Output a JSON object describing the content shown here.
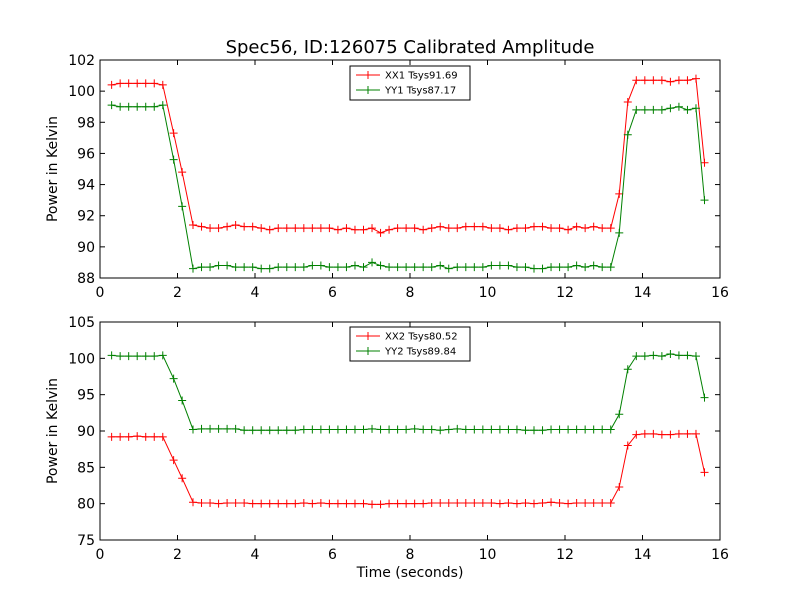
{
  "figure_title": "Spec56, ID:126075 Calibrated Amplitude",
  "xlabel": "Time (seconds)",
  "colors": {
    "red": "#ff0000",
    "green": "#008000"
  },
  "chart_data": [
    {
      "type": "line",
      "ylabel": "Power in Kelvin",
      "xlim": [
        0,
        16
      ],
      "ylim": [
        88,
        102
      ],
      "xticks": [
        0,
        2,
        4,
        6,
        8,
        10,
        12,
        14,
        16
      ],
      "yticks": [
        88,
        90,
        92,
        94,
        96,
        98,
        100,
        102
      ],
      "legend_position": "top-center",
      "grid": false,
      "x": [
        0.3,
        0.52,
        0.74,
        0.96,
        1.18,
        1.4,
        1.62,
        1.9,
        2.12,
        2.4,
        2.62,
        2.84,
        3.06,
        3.28,
        3.5,
        3.72,
        3.94,
        4.16,
        4.38,
        4.6,
        4.82,
        5.04,
        5.26,
        5.48,
        5.7,
        5.92,
        6.14,
        6.36,
        6.58,
        6.8,
        7.02,
        7.24,
        7.46,
        7.68,
        7.9,
        8.12,
        8.34,
        8.56,
        8.78,
        9.0,
        9.22,
        9.44,
        9.66,
        9.88,
        10.1,
        10.32,
        10.54,
        10.76,
        10.98,
        11.2,
        11.42,
        11.64,
        11.86,
        12.08,
        12.3,
        12.52,
        12.74,
        12.96,
        13.18,
        13.4,
        13.62,
        13.84,
        14.06,
        14.28,
        14.5,
        14.72,
        14.94,
        15.16,
        15.38,
        15.6
      ],
      "series": [
        {
          "name": "XX1 Tsys91.69",
          "color": "#ff0000",
          "values": [
            100.4,
            100.5,
            100.5,
            100.5,
            100.5,
            100.5,
            100.4,
            97.3,
            94.8,
            91.4,
            91.3,
            91.2,
            91.2,
            91.3,
            91.4,
            91.3,
            91.3,
            91.2,
            91.1,
            91.2,
            91.2,
            91.2,
            91.2,
            91.2,
            91.2,
            91.2,
            91.1,
            91.2,
            91.1,
            91.1,
            91.2,
            90.9,
            91.1,
            91.2,
            91.2,
            91.2,
            91.1,
            91.2,
            91.3,
            91.2,
            91.2,
            91.3,
            91.3,
            91.3,
            91.2,
            91.2,
            91.1,
            91.2,
            91.2,
            91.3,
            91.3,
            91.2,
            91.2,
            91.1,
            91.3,
            91.2,
            91.3,
            91.2,
            91.2,
            93.4,
            99.3,
            100.7,
            100.7,
            100.7,
            100.7,
            100.6,
            100.7,
            100.7,
            100.8,
            95.4
          ]
        },
        {
          "name": "YY1 Tsys87.17",
          "color": "#008000",
          "values": [
            99.1,
            99.0,
            99.0,
            99.0,
            99.0,
            99.0,
            99.1,
            95.6,
            92.6,
            88.6,
            88.7,
            88.7,
            88.8,
            88.8,
            88.7,
            88.7,
            88.7,
            88.6,
            88.6,
            88.7,
            88.7,
            88.7,
            88.7,
            88.8,
            88.8,
            88.7,
            88.7,
            88.7,
            88.8,
            88.7,
            89.0,
            88.8,
            88.7,
            88.7,
            88.7,
            88.7,
            88.7,
            88.7,
            88.8,
            88.6,
            88.7,
            88.7,
            88.7,
            88.7,
            88.8,
            88.8,
            88.8,
            88.7,
            88.7,
            88.6,
            88.6,
            88.7,
            88.7,
            88.7,
            88.8,
            88.7,
            88.8,
            88.7,
            88.7,
            90.9,
            97.2,
            98.8,
            98.8,
            98.8,
            98.8,
            98.9,
            99.0,
            98.8,
            98.9,
            93.0
          ]
        }
      ]
    },
    {
      "type": "line",
      "ylabel": "Power in Kelvin",
      "xlabel": "Time (seconds)",
      "xlim": [
        0,
        16
      ],
      "ylim": [
        75,
        105
      ],
      "xticks": [
        0,
        2,
        4,
        6,
        8,
        10,
        12,
        14,
        16
      ],
      "yticks": [
        75,
        80,
        85,
        90,
        95,
        100,
        105
      ],
      "legend_position": "top-center",
      "grid": false,
      "x": [
        0.3,
        0.52,
        0.74,
        0.96,
        1.18,
        1.4,
        1.62,
        1.9,
        2.12,
        2.4,
        2.62,
        2.84,
        3.06,
        3.28,
        3.5,
        3.72,
        3.94,
        4.16,
        4.38,
        4.6,
        4.82,
        5.04,
        5.26,
        5.48,
        5.7,
        5.92,
        6.14,
        6.36,
        6.58,
        6.8,
        7.02,
        7.24,
        7.46,
        7.68,
        7.9,
        8.12,
        8.34,
        8.56,
        8.78,
        9.0,
        9.22,
        9.44,
        9.66,
        9.88,
        10.1,
        10.32,
        10.54,
        10.76,
        10.98,
        11.2,
        11.42,
        11.64,
        11.86,
        12.08,
        12.3,
        12.52,
        12.74,
        12.96,
        13.18,
        13.4,
        13.62,
        13.84,
        14.06,
        14.28,
        14.5,
        14.72,
        14.94,
        15.16,
        15.38,
        15.6
      ],
      "series": [
        {
          "name": "XX2 Tsys80.52",
          "color": "#ff0000",
          "values": [
            89.2,
            89.2,
            89.2,
            89.3,
            89.2,
            89.2,
            89.2,
            86.0,
            83.5,
            80.2,
            80.1,
            80.1,
            80.0,
            80.1,
            80.1,
            80.1,
            80.0,
            80.0,
            80.0,
            80.0,
            80.0,
            80.0,
            80.1,
            80.0,
            80.1,
            80.0,
            80.0,
            80.0,
            80.0,
            80.0,
            79.9,
            79.9,
            80.0,
            80.0,
            80.0,
            80.0,
            80.0,
            80.1,
            80.1,
            80.1,
            80.1,
            80.1,
            80.1,
            80.1,
            80.1,
            80.0,
            80.1,
            80.0,
            80.1,
            80.0,
            80.1,
            80.2,
            80.1,
            80.0,
            80.1,
            80.1,
            80.1,
            80.1,
            80.1,
            82.3,
            88.0,
            89.5,
            89.6,
            89.6,
            89.5,
            89.5,
            89.6,
            89.6,
            89.6,
            84.3
          ]
        },
        {
          "name": "YY2 Tsys89.84",
          "color": "#008000",
          "values": [
            100.4,
            100.3,
            100.3,
            100.3,
            100.3,
            100.3,
            100.4,
            97.2,
            94.2,
            90.2,
            90.3,
            90.3,
            90.3,
            90.3,
            90.3,
            90.1,
            90.1,
            90.1,
            90.1,
            90.1,
            90.1,
            90.1,
            90.2,
            90.2,
            90.2,
            90.2,
            90.2,
            90.2,
            90.2,
            90.2,
            90.3,
            90.2,
            90.2,
            90.2,
            90.2,
            90.3,
            90.2,
            90.2,
            90.1,
            90.2,
            90.3,
            90.2,
            90.2,
            90.2,
            90.2,
            90.2,
            90.2,
            90.2,
            90.1,
            90.1,
            90.1,
            90.2,
            90.2,
            90.2,
            90.2,
            90.2,
            90.2,
            90.2,
            90.2,
            92.3,
            98.5,
            100.3,
            100.3,
            100.4,
            100.3,
            100.6,
            100.4,
            100.4,
            100.3,
            94.6
          ]
        }
      ]
    }
  ]
}
